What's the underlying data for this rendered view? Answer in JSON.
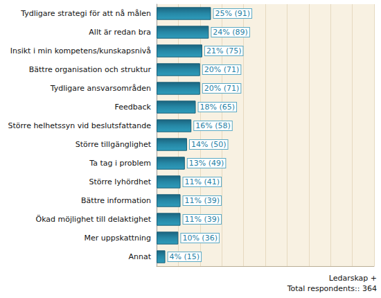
{
  "chart_data": {
    "type": "bar",
    "orientation": "horizontal",
    "categories": [
      "Tydligare strategi för att nå målen",
      "Allt är redan bra",
      "Insikt i min kompetens/kunskapsnivå",
      "Bättre organisation och struktur",
      "Tydligare ansvarsområden",
      "Feedback",
      "Större helhetssyn vid beslutsfattande",
      "Större tillgänglighet",
      "Ta tag i problem",
      "Större lyhördhet",
      "Bättre information",
      "Ökad möjlighet till delaktighet",
      "Mer uppskattning",
      "Annat"
    ],
    "values": [
      25,
      24,
      21,
      20,
      20,
      18,
      16,
      14,
      13,
      11,
      11,
      11,
      10,
      4
    ],
    "value_labels": [
      "25% (91)",
      "24% (89)",
      "21% (75)",
      "20% (71)",
      "20% (71)",
      "18% (65)",
      "16% (58)",
      "14% (50)",
      "13% (49)",
      "11% (41)",
      "11% (39)",
      "11% (39)",
      "10% (36)",
      "4% (15)"
    ],
    "data_labels": true,
    "color": "#2688a6",
    "xlim": [
      0,
      100
    ],
    "xticks": [
      0,
      10,
      20,
      30,
      40,
      50,
      60,
      70,
      80,
      90,
      100
    ],
    "tick_labels": false,
    "grid": true,
    "annotations": [
      "Ledarskap +",
      "Total respondents:: 364"
    ]
  }
}
